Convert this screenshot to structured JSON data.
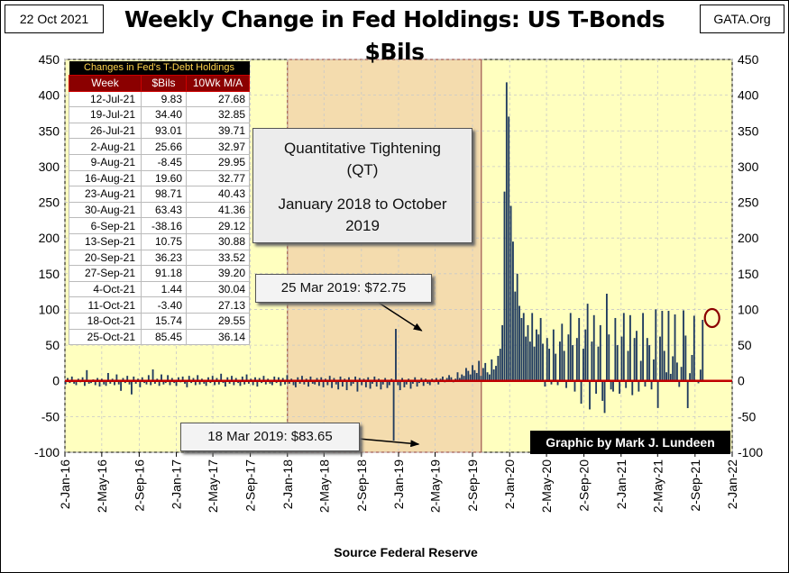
{
  "header": {
    "date": "22 Oct 2021",
    "title": "Weekly Change in Fed Holdings: US T-Bonds $Bils",
    "site": "GATA.Org"
  },
  "footer": {
    "source": "Source Federal Reserve"
  },
  "qt_box": {
    "line1": "Quantitative Tightening",
    "line2": "(QT)",
    "line3": "January 2018 to October 2019"
  },
  "callouts": {
    "top": "25 Mar 2019: $72.75",
    "bottom": "18 Mar 2019: $83.65"
  },
  "credit": "Graphic by Mark J. Lundeen",
  "table": {
    "caption": "Changes in Fed's T-Debt Holdings",
    "headers": [
      "Week",
      "$Bils",
      "10Wk M/A"
    ],
    "rows": [
      [
        "12-Jul-21",
        "9.83",
        "27.68"
      ],
      [
        "19-Jul-21",
        "34.40",
        "32.85"
      ],
      [
        "26-Jul-21",
        "93.01",
        "39.71"
      ],
      [
        "2-Aug-21",
        "25.66",
        "32.97"
      ],
      [
        "9-Aug-21",
        "-8.45",
        "29.95"
      ],
      [
        "16-Aug-21",
        "19.60",
        "32.77"
      ],
      [
        "23-Aug-21",
        "98.71",
        "40.43"
      ],
      [
        "30-Aug-21",
        "63.43",
        "41.36"
      ],
      [
        "6-Sep-21",
        "-38.16",
        "29.12"
      ],
      [
        "13-Sep-21",
        "10.75",
        "30.88"
      ],
      [
        "20-Sep-21",
        "36.23",
        "33.52"
      ],
      [
        "27-Sep-21",
        "91.18",
        "39.20"
      ],
      [
        "4-Oct-21",
        "1.44",
        "30.04"
      ],
      [
        "11-Oct-21",
        "-3.40",
        "27.13"
      ],
      [
        "18-Oct-21",
        "15.74",
        "29.55"
      ],
      [
        "25-Oct-21",
        "85.45",
        "36.14"
      ]
    ]
  },
  "colors": {
    "plot_background": "#ffffbf",
    "qt_shade": "#f4dcae",
    "bars": "#1f3a5f",
    "zero_line": "#c00000",
    "highlight_ring": "#8b0000"
  },
  "chart_data": {
    "type": "bar",
    "title": "Weekly Change in Fed Holdings: US T-Bonds $Bils",
    "xlabel": "Source Federal Reserve",
    "ylabel": "",
    "ylim": [
      -100,
      450
    ],
    "yticks": [
      -100,
      -50,
      0,
      50,
      100,
      150,
      200,
      250,
      300,
      350,
      400,
      450
    ],
    "xlim": [
      "2016-01-02",
      "2022-01-02"
    ],
    "xticks": [
      "2-Jan-16",
      "2-May-16",
      "2-Sep-16",
      "2-Jan-17",
      "2-May-17",
      "2-Sep-17",
      "2-Jan-18",
      "2-May-18",
      "2-Sep-18",
      "2-Jan-19",
      "2-May-19",
      "2-Sep-19",
      "2-Jan-20",
      "2-May-20",
      "2-Sep-20",
      "2-Jan-21",
      "2-May-21",
      "2-Sep-21",
      "2-Jan-22"
    ],
    "xtick_dates": [
      "2016-01-02",
      "2016-05-02",
      "2016-09-02",
      "2017-01-02",
      "2017-05-02",
      "2017-09-02",
      "2018-01-02",
      "2018-05-02",
      "2018-09-02",
      "2019-01-02",
      "2019-05-02",
      "2019-09-02",
      "2020-01-02",
      "2020-05-02",
      "2020-09-02",
      "2021-01-02",
      "2021-05-02",
      "2021-09-02",
      "2022-01-02"
    ],
    "grid": true,
    "shaded_period": {
      "start": "2018-01-02",
      "end": "2019-10-01",
      "label": "Quantitative Tightening (QT)"
    },
    "annotations": [
      {
        "date": "2019-03-25",
        "value": 72.75,
        "text": "25 Mar 2019: $72.75"
      },
      {
        "date": "2019-03-18",
        "value": -83.65,
        "text": "18 Mar 2019: $83.65"
      }
    ],
    "highlight": {
      "date": "2021-10-25",
      "value": 85.45
    },
    "series": [
      {
        "start_date": "2016-01-04",
        "values": [
          -5,
          4,
          -3,
          6,
          -4,
          -6,
          3,
          -2,
          5,
          -7,
          15,
          -4,
          -3,
          2,
          -6,
          4,
          -8,
          3,
          -5,
          -7,
          11,
          -4,
          3,
          -6,
          9,
          -5,
          -14,
          4,
          -3,
          7,
          -5,
          -19,
          6,
          -4,
          3,
          -9,
          5,
          -3,
          -5,
          8,
          -6,
          16,
          -4,
          3,
          -7,
          9,
          -5,
          -3,
          8,
          -6,
          4,
          -3,
          -7,
          5,
          -2,
          6,
          -4,
          -9,
          7,
          -3,
          4,
          -6,
          8,
          -5,
          3,
          -4,
          -7,
          5,
          -3,
          7,
          -6,
          4,
          -5,
          10,
          -3,
          -8,
          5,
          -4,
          7,
          -6,
          4,
          -3,
          -7,
          6,
          -5,
          9,
          -4,
          3,
          -6,
          5,
          -8,
          4,
          -3,
          7,
          -5,
          3,
          -4,
          -6,
          6,
          -3,
          5,
          -7,
          4,
          -5,
          8,
          -4,
          3,
          -6,
          -9,
          5,
          -4,
          7,
          -5,
          3,
          -8,
          6,
          -4,
          -5,
          4,
          -7,
          5,
          -9,
          3,
          -6,
          7,
          -10,
          4,
          -5,
          -12,
          6,
          -8,
          3,
          -13,
          5,
          -7,
          -4,
          6,
          -15,
          4,
          -6,
          3,
          -9,
          5,
          -11,
          -4,
          6,
          -8,
          3,
          -12,
          -5,
          4,
          -10,
          -6,
          3,
          -83.65,
          72.75,
          -6,
          -13,
          4,
          -9,
          -5,
          3,
          -11,
          -4,
          5,
          -8,
          -3,
          4,
          -7,
          3,
          -4,
          -6,
          3,
          -2,
          4,
          -5,
          3,
          6,
          -2,
          4,
          8,
          5,
          -2,
          3,
          12,
          4,
          9,
          7,
          18,
          14,
          9,
          22,
          15,
          11,
          28,
          7,
          18,
          25,
          12,
          9,
          30,
          16,
          21,
          35,
          45,
          78,
          265,
          418,
          370,
          245,
          195,
          125,
          150,
          105,
          88,
          95,
          62,
          78,
          55,
          95,
          48,
          72,
          65,
          88,
          52,
          -8,
          60,
          45,
          -5,
          72,
          38,
          -6,
          55,
          80,
          42,
          -10,
          65,
          95,
          50,
          -15,
          60,
          88,
          -32,
          45,
          72,
          108,
          -40,
          55,
          92,
          -18,
          48,
          78,
          -28,
          -45,
          122,
          65,
          -12,
          -15,
          88,
          50,
          -18,
          62,
          95,
          -10,
          42,
          92,
          -20,
          60,
          70,
          -15,
          28,
          95,
          -8,
          60,
          50,
          -12,
          30,
          100,
          -38,
          62,
          98,
          42,
          12,
          98,
          9.83,
          34.4,
          93.01,
          25.66,
          -8.45,
          19.6,
          98.71,
          63.43,
          -38.16,
          10.75,
          36.23,
          91.18,
          1.44,
          -3.4,
          15.74,
          85.45
        ]
      }
    ]
  }
}
